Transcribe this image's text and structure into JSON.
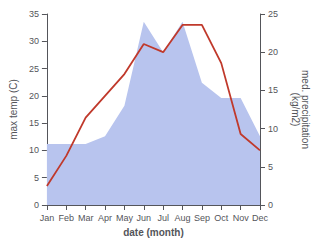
{
  "chart_data": {
    "type": "line",
    "categories": [
      "Jan",
      "Feb",
      "Mar",
      "Apr",
      "May",
      "Jun",
      "Jul",
      "Aug",
      "Sep",
      "Oct",
      "Nov",
      "Dec"
    ],
    "series": [
      {
        "type": "area",
        "color": "#b8c4ee",
        "axis": "y2",
        "values": [
          8,
          8,
          8,
          9,
          13,
          24,
          20,
          24,
          16,
          14,
          14,
          9
        ]
      },
      {
        "type": "line",
        "color": "#c0392b",
        "values": [
          3.5,
          9.0,
          16.0,
          20.0,
          24.0,
          29.5,
          28.0,
          33.0,
          33.0,
          26.0,
          13.0,
          10.0
        ]
      }
    ],
    "xlabel": "date (month)",
    "ylabel": "max temp (C)",
    "y2label": "med. precipitation\n(kg/m2)",
    "ylim": [
      0,
      35
    ],
    "yticks": [
      0,
      5,
      10,
      15,
      20,
      25,
      30,
      35
    ],
    "y2lim": [
      0,
      25
    ],
    "y2ticks": [
      0,
      5,
      10,
      15,
      20,
      25
    ],
    "grid": false
  }
}
